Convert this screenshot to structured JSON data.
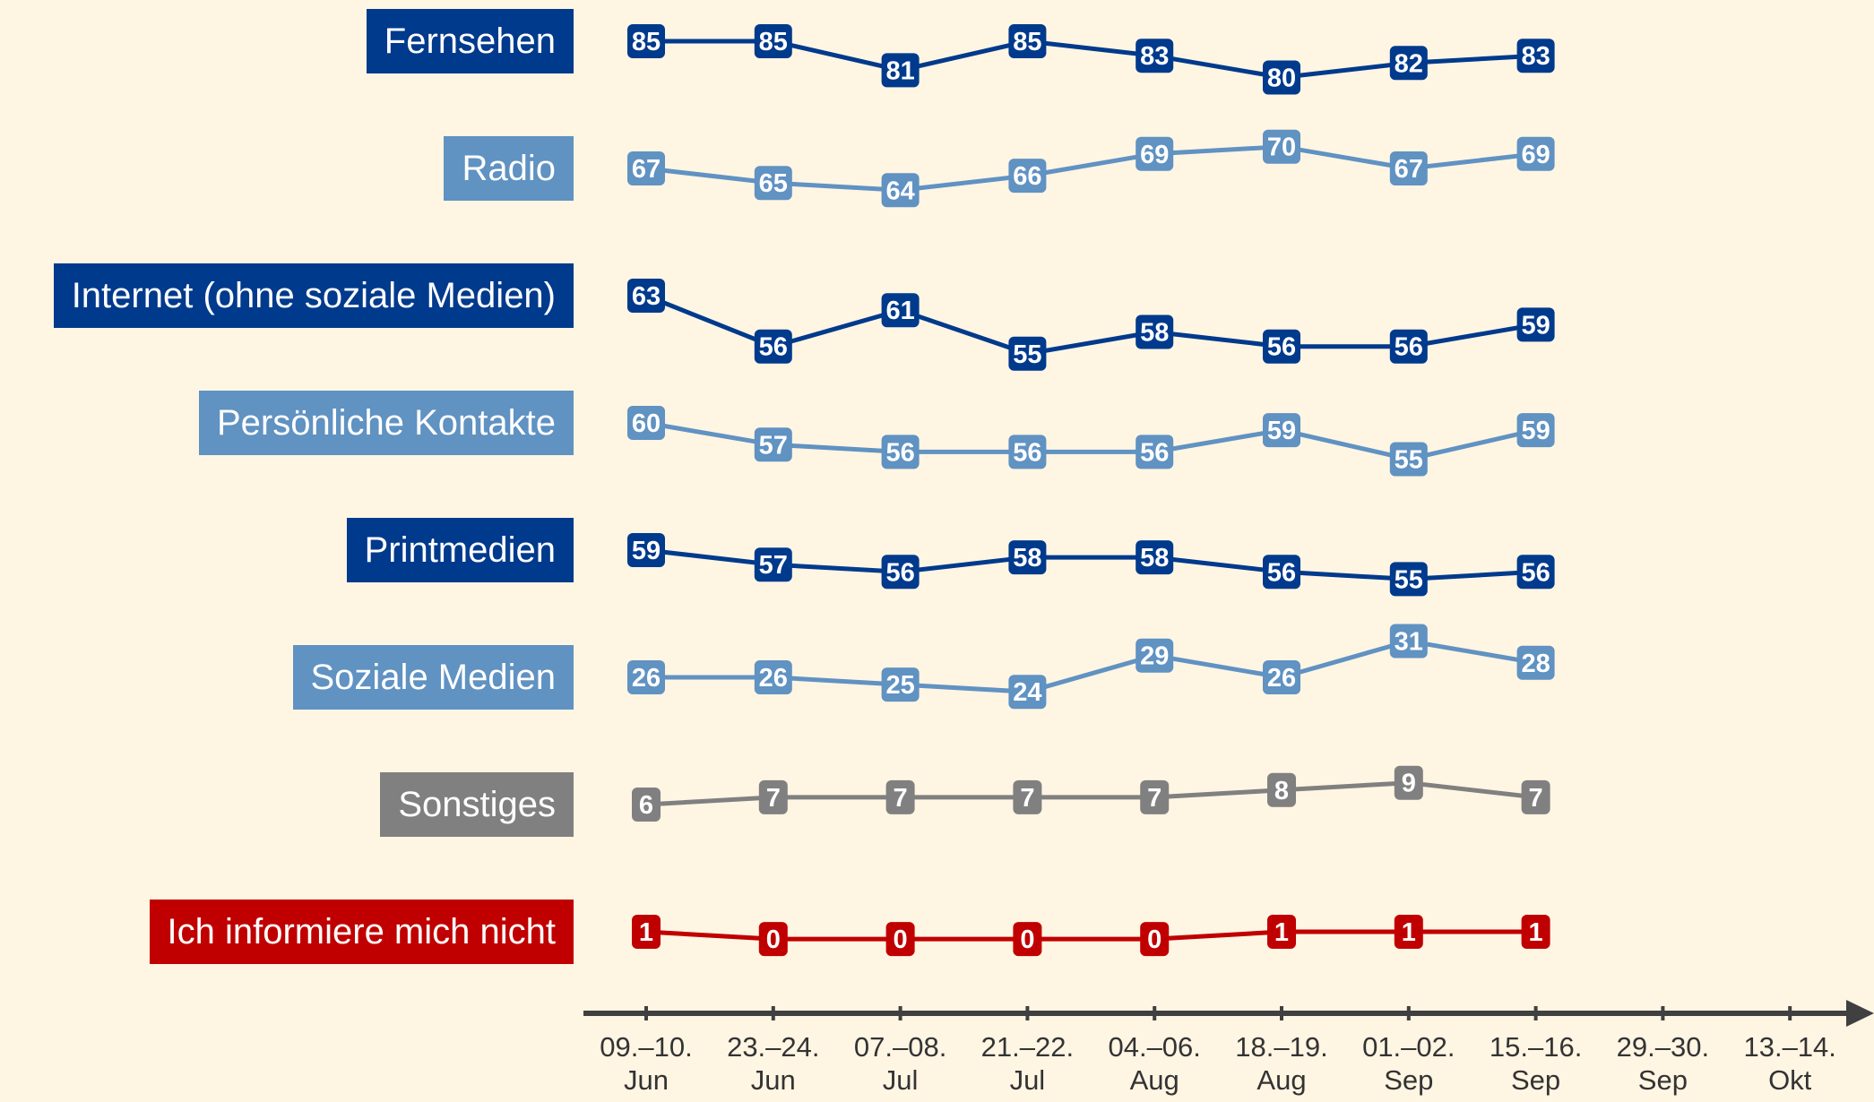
{
  "chart_data": {
    "type": "line",
    "categories": [
      "09.–10. Jun",
      "23.–24. Jun",
      "07.–08. Jul",
      "21.–22. Jul",
      "04.–06. Aug",
      "18.–19. Aug",
      "01.–02. Sep",
      "15.–16. Sep",
      "29.–30. Sep",
      "13.–14. Okt"
    ],
    "series": [
      {
        "name": "Fernsehen",
        "color": "#003a8c",
        "values": [
          85,
          85,
          81,
          85,
          83,
          80,
          82,
          83,
          null,
          null
        ]
      },
      {
        "name": "Radio",
        "color": "#6092c2",
        "values": [
          67,
          65,
          64,
          66,
          69,
          70,
          67,
          69,
          null,
          null
        ]
      },
      {
        "name": "Internet (ohne soziale Medien)",
        "color": "#003a8c",
        "values": [
          63,
          56,
          61,
          55,
          58,
          56,
          56,
          59,
          null,
          null
        ]
      },
      {
        "name": "Persönliche Kontakte",
        "color": "#6092c2",
        "values": [
          60,
          57,
          56,
          56,
          56,
          59,
          55,
          59,
          null,
          null
        ]
      },
      {
        "name": "Printmedien",
        "color": "#003a8c",
        "values": [
          59,
          57,
          56,
          58,
          58,
          56,
          55,
          56,
          null,
          null
        ]
      },
      {
        "name": "Soziale Medien",
        "color": "#6092c2",
        "values": [
          26,
          26,
          25,
          24,
          29,
          26,
          31,
          28,
          null,
          null
        ]
      },
      {
        "name": "Sonstiges",
        "color": "#808080",
        "values": [
          6,
          7,
          7,
          7,
          7,
          8,
          9,
          7,
          null,
          null
        ]
      },
      {
        "name": "Ich informiere mich nicht",
        "color": "#c00000",
        "values": [
          1,
          0,
          0,
          0,
          0,
          1,
          1,
          1,
          null,
          null
        ]
      }
    ]
  }
}
